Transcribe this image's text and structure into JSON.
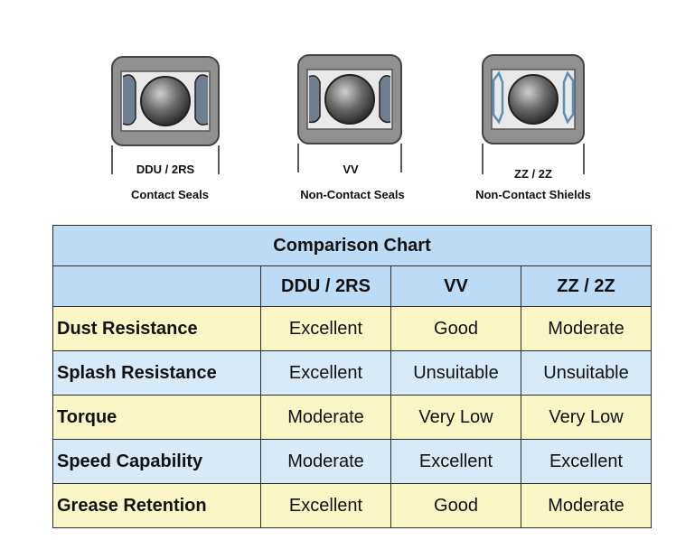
{
  "bearings": [
    {
      "code": "DDU / 2RS",
      "description": "Contact Seals",
      "icon": "contact-seal-bearing-icon"
    },
    {
      "code": "VV",
      "description": "Non-Contact Seals",
      "icon": "non-contact-seal-bearing-icon"
    },
    {
      "code": "ZZ / 2Z",
      "description": "Non-Contact Shields",
      "icon": "shield-bearing-icon"
    }
  ],
  "table": {
    "title": "Comparison Chart",
    "columns": [
      "",
      "DDU / 2RS",
      "VV",
      "ZZ / 2Z"
    ],
    "rows": [
      {
        "label": "Dust Resistance",
        "values": [
          "Excellent",
          "Good",
          "Moderate"
        ]
      },
      {
        "label": "Splash Resistance",
        "values": [
          "Excellent",
          "Unsuitable",
          "Unsuitable"
        ]
      },
      {
        "label": "Torque",
        "values": [
          "Moderate",
          "Very Low",
          "Very Low"
        ]
      },
      {
        "label": "Speed Capability",
        "values": [
          "Moderate",
          "Excellent",
          "Excellent"
        ]
      },
      {
        "label": "Grease Retention",
        "values": [
          "Excellent",
          "Good",
          "Moderate"
        ]
      }
    ]
  },
  "colors": {
    "header_blue": "#bcdcf6",
    "row_yellow": "#fbf6c6",
    "row_blue": "#d8eaf8",
    "ring_gray": "#8f8f8f",
    "ball_gray": "#5a5a5a"
  }
}
